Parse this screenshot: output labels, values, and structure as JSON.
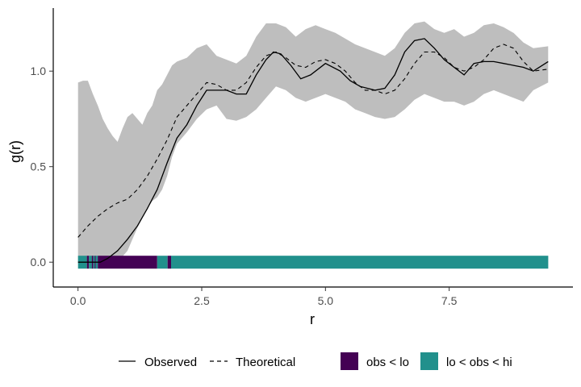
{
  "chart_data": {
    "type": "line",
    "xlabel": "r",
    "ylabel": "g(r)",
    "xlim": [
      -0.5,
      10.0
    ],
    "ylim": [
      -0.13,
      1.33
    ],
    "x_ticks": [
      0.0,
      2.5,
      5.0,
      7.5
    ],
    "x_tick_labels": [
      "0.0",
      "2.5",
      "5.0",
      "7.5"
    ],
    "y_ticks": [
      0.0,
      0.5,
      1.0
    ],
    "y_tick_labels": [
      "0.0",
      "0.5",
      "1.0"
    ],
    "grid": false,
    "legend_position": "bottom",
    "colors": {
      "envelope": "#bebebe",
      "obs_lt_lo": "#440154",
      "lo_lt_obs_lt_hi": "#21908c",
      "line": "#000000"
    },
    "envelope": {
      "x": [
        0.0,
        0.1,
        0.2,
        0.3,
        0.4,
        0.5,
        0.6,
        0.7,
        0.8,
        0.9,
        1.0,
        1.1,
        1.2,
        1.3,
        1.4,
        1.5,
        1.6,
        1.7,
        1.8,
        1.9,
        2.0,
        2.2,
        2.4,
        2.6,
        2.8,
        3.0,
        3.2,
        3.4,
        3.6,
        3.8,
        4.0,
        4.2,
        4.4,
        4.6,
        4.8,
        5.0,
        5.2,
        5.4,
        5.6,
        5.8,
        6.0,
        6.2,
        6.4,
        6.6,
        6.8,
        7.0,
        7.2,
        7.4,
        7.6,
        7.8,
        8.0,
        8.2,
        8.4,
        8.6,
        8.8,
        9.0,
        9.2,
        9.5
      ],
      "hi": [
        0.94,
        0.95,
        0.95,
        0.88,
        0.82,
        0.75,
        0.7,
        0.66,
        0.63,
        0.7,
        0.76,
        0.78,
        0.75,
        0.72,
        0.78,
        0.82,
        0.9,
        0.93,
        0.98,
        1.03,
        1.05,
        1.07,
        1.12,
        1.14,
        1.08,
        1.06,
        1.04,
        1.08,
        1.18,
        1.25,
        1.25,
        1.23,
        1.18,
        1.22,
        1.24,
        1.22,
        1.2,
        1.17,
        1.14,
        1.12,
        1.1,
        1.08,
        1.12,
        1.2,
        1.25,
        1.26,
        1.22,
        1.2,
        1.22,
        1.18,
        1.2,
        1.24,
        1.25,
        1.23,
        1.2,
        1.15,
        1.12,
        1.13
      ],
      "lo": [
        0.0,
        0.0,
        0.0,
        0.0,
        0.0,
        0.0,
        0.0,
        0.0,
        0.0,
        0.03,
        0.06,
        0.12,
        0.18,
        0.23,
        0.28,
        0.32,
        0.34,
        0.38,
        0.45,
        0.55,
        0.62,
        0.68,
        0.75,
        0.8,
        0.82,
        0.75,
        0.74,
        0.76,
        0.8,
        0.86,
        0.92,
        0.9,
        0.86,
        0.84,
        0.86,
        0.88,
        0.86,
        0.84,
        0.8,
        0.78,
        0.76,
        0.75,
        0.76,
        0.8,
        0.85,
        0.88,
        0.86,
        0.84,
        0.84,
        0.82,
        0.84,
        0.88,
        0.9,
        0.88,
        0.86,
        0.84,
        0.9,
        0.94
      ]
    },
    "series": [
      {
        "name": "Observed",
        "style": "solid",
        "x": [
          0.0,
          0.45,
          0.6,
          0.8,
          1.0,
          1.2,
          1.4,
          1.6,
          1.8,
          2.0,
          2.2,
          2.4,
          2.6,
          2.8,
          3.0,
          3.2,
          3.4,
          3.6,
          3.8,
          3.95,
          4.1,
          4.3,
          4.5,
          4.7,
          5.0,
          5.3,
          5.5,
          5.7,
          6.0,
          6.2,
          6.4,
          6.6,
          6.8,
          7.0,
          7.2,
          7.4,
          7.6,
          7.8,
          8.0,
          8.2,
          8.4,
          8.6,
          8.8,
          9.0,
          9.2,
          9.5
        ],
        "y": [
          0.0,
          0.0,
          0.02,
          0.06,
          0.12,
          0.19,
          0.28,
          0.38,
          0.52,
          0.65,
          0.72,
          0.82,
          0.9,
          0.9,
          0.9,
          0.88,
          0.88,
          0.98,
          1.06,
          1.1,
          1.09,
          1.03,
          0.96,
          0.98,
          1.04,
          1.0,
          0.95,
          0.92,
          0.9,
          0.91,
          0.98,
          1.1,
          1.16,
          1.17,
          1.12,
          1.06,
          1.02,
          0.98,
          1.04,
          1.05,
          1.05,
          1.04,
          1.03,
          1.02,
          1.0,
          1.05
        ]
      },
      {
        "name": "Theoretical",
        "style": "dashed",
        "x": [
          0.0,
          0.2,
          0.4,
          0.6,
          0.8,
          1.0,
          1.2,
          1.4,
          1.6,
          1.8,
          2.0,
          2.2,
          2.4,
          2.6,
          2.8,
          3.0,
          3.2,
          3.4,
          3.6,
          3.8,
          4.0,
          4.2,
          4.4,
          4.6,
          4.8,
          5.0,
          5.2,
          5.4,
          5.6,
          5.8,
          6.0,
          6.2,
          6.4,
          6.6,
          6.8,
          7.0,
          7.2,
          7.4,
          7.6,
          7.8,
          8.0,
          8.2,
          8.4,
          8.6,
          8.8,
          9.0,
          9.2,
          9.5
        ],
        "y": [
          0.13,
          0.19,
          0.24,
          0.28,
          0.31,
          0.33,
          0.38,
          0.45,
          0.54,
          0.64,
          0.76,
          0.82,
          0.88,
          0.94,
          0.93,
          0.9,
          0.9,
          0.94,
          1.02,
          1.08,
          1.1,
          1.07,
          1.03,
          1.02,
          1.05,
          1.06,
          1.04,
          1.0,
          0.94,
          0.9,
          0.9,
          0.88,
          0.9,
          0.96,
          1.04,
          1.1,
          1.1,
          1.07,
          1.02,
          1.0,
          1.02,
          1.06,
          1.12,
          1.14,
          1.12,
          1.05,
          1.0,
          1.01
        ]
      }
    ],
    "strip": {
      "y": 0.0,
      "segments": [
        {
          "from": 0.0,
          "to": 0.18,
          "status": "lo_lt_obs_lt_hi"
        },
        {
          "from": 0.18,
          "to": 0.22,
          "status": "obs_lt_lo"
        },
        {
          "from": 0.22,
          "to": 0.28,
          "status": "lo_lt_obs_lt_hi"
        },
        {
          "from": 0.28,
          "to": 0.31,
          "status": "obs_lt_lo"
        },
        {
          "from": 0.31,
          "to": 0.34,
          "status": "lo_lt_obs_lt_hi"
        },
        {
          "from": 0.34,
          "to": 0.36,
          "status": "obs_lt_lo"
        },
        {
          "from": 0.36,
          "to": 0.4,
          "status": "lo_lt_obs_lt_hi"
        },
        {
          "from": 0.4,
          "to": 0.43,
          "status": "obs_lt_lo"
        },
        {
          "from": 0.43,
          "to": 1.6,
          "status": "obs_lt_lo"
        },
        {
          "from": 1.6,
          "to": 1.81,
          "status": "lo_lt_obs_lt_hi"
        },
        {
          "from": 1.81,
          "to": 1.88,
          "status": "obs_lt_lo"
        },
        {
          "from": 1.88,
          "to": 9.5,
          "status": "lo_lt_obs_lt_hi"
        }
      ]
    },
    "legend": {
      "lines": [
        {
          "label": "Observed",
          "style": "solid"
        },
        {
          "label": "Theoretical",
          "style": "dashed"
        }
      ],
      "fills": [
        {
          "label": "obs < lo",
          "status": "obs_lt_lo"
        },
        {
          "label": "lo < obs < hi",
          "status": "lo_lt_obs_lt_hi"
        }
      ]
    }
  }
}
